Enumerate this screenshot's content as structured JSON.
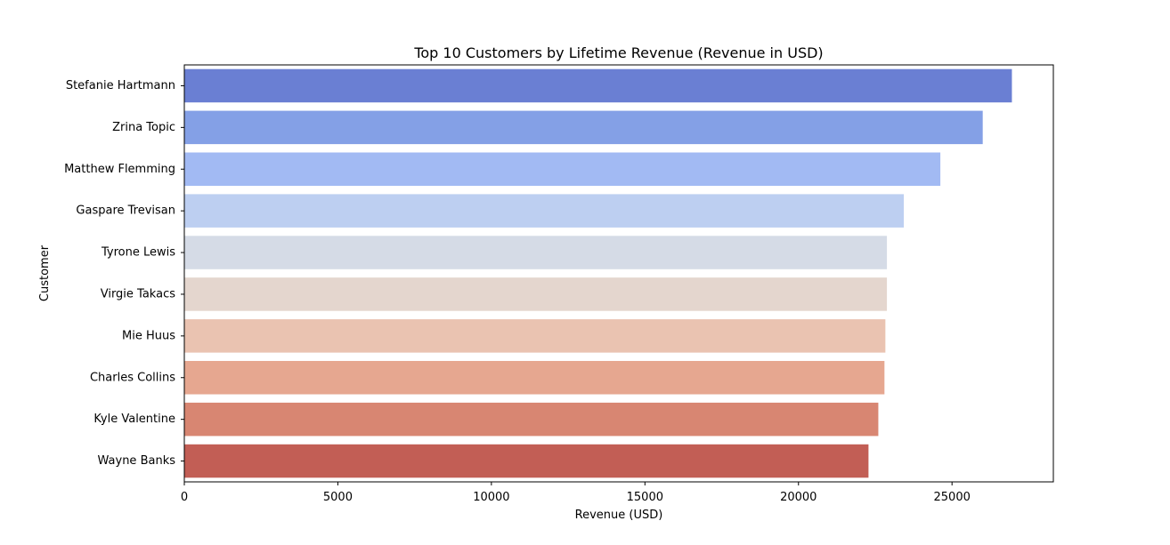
{
  "chart_data": {
    "type": "bar",
    "orientation": "horizontal",
    "title": "Top 10 Customers by Lifetime Revenue (Revenue in USD)",
    "xlabel": "Revenue (USD)",
    "ylabel": "Customer",
    "xlim": [
      0,
      28300
    ],
    "xticks": [
      "0",
      "5000",
      "10000",
      "15000",
      "20000",
      "25000"
    ],
    "grid": false,
    "categories": [
      "Stefanie Hartmann",
      "Zrina Topic",
      "Matthew Flemming",
      "Gaspare Trevisan",
      "Tyrone Lewis",
      "Virgie Takacs",
      "Mie Huus",
      "Charles Collins",
      "Kyle Valentine",
      "Wayne Banks"
    ],
    "values": [
      26950,
      26000,
      24620,
      23430,
      22880,
      22880,
      22830,
      22800,
      22600,
      22280
    ],
    "colors": [
      "#6a7fd3",
      "#84a0e6",
      "#a2baf3",
      "#bdcff1",
      "#d5dbe6",
      "#e4d6ce",
      "#eac3b1",
      "#e6a790",
      "#d88672",
      "#c25e55"
    ]
  }
}
